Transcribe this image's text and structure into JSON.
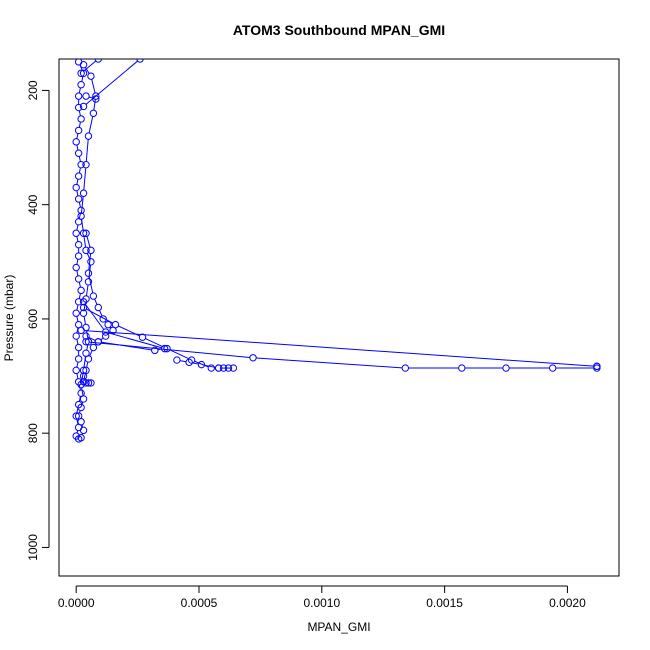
{
  "chart_data": {
    "type": "line",
    "title": "ATOM3 Southbound MPAN_GMI",
    "xlabel": "MPAN_GMI",
    "ylabel": "Pressure (mbar)",
    "xlim": [
      -7e-05,
      0.00221
    ],
    "ylim": [
      1050,
      145
    ],
    "y_reversed": true,
    "grid": false,
    "color": "#0000ff",
    "marker": "open-circle",
    "x_ticks": [
      {
        "value": 0.0,
        "label": "0.0000"
      },
      {
        "value": 0.0005,
        "label": "0.0005"
      },
      {
        "value": 0.001,
        "label": "0.0010"
      },
      {
        "value": 0.0015,
        "label": "0.0015"
      },
      {
        "value": 0.002,
        "label": "0.0020"
      }
    ],
    "y_ticks": [
      {
        "value": 200,
        "label": "200"
      },
      {
        "value": 400,
        "label": "400"
      },
      {
        "value": 600,
        "label": "600"
      },
      {
        "value": 800,
        "label": "800"
      },
      {
        "value": 1000,
        "label": "1000"
      }
    ],
    "series": [
      {
        "x": [
          1e-05,
          3e-05,
          2e-05,
          1e-05,
          1e-05,
          2e-05,
          1e-05,
          0.0,
          1e-05,
          2e-05,
          1e-05,
          0.0,
          1e-05,
          2e-05,
          1e-05,
          0.0,
          1e-05,
          1e-05,
          0.0,
          1e-05,
          2e-05,
          1e-05,
          0.0,
          1e-05,
          0.0,
          1e-05,
          1e-05,
          0.0,
          1e-05,
          2e-05,
          1e-05,
          0.0,
          1e-05,
          0.0,
          1e-05
        ],
        "y": [
          150,
          170,
          190,
          210,
          230,
          250,
          270,
          290,
          310,
          330,
          350,
          370,
          390,
          410,
          430,
          450,
          470,
          490,
          510,
          530,
          550,
          570,
          590,
          610,
          630,
          650,
          670,
          690,
          710,
          730,
          750,
          770,
          790,
          805,
          810
        ]
      },
      {
        "x": [
          3e-05,
          6e-05,
          8e-05,
          7e-05,
          5e-05,
          4e-05,
          3e-05,
          2e-05,
          3e-05,
          4e-05,
          6e-05,
          5e-05,
          4e-05,
          3e-05,
          4e-05,
          5e-05,
          4e-05,
          3e-05,
          2e-05,
          3e-05,
          2e-05,
          1e-05,
          2e-05,
          3e-05,
          2e-05
        ],
        "y": [
          155,
          175,
          210,
          240,
          280,
          330,
          380,
          420,
          450,
          480,
          500,
          535,
          565,
          590,
          615,
          640,
          660,
          690,
          715,
          740,
          755,
          770,
          780,
          795,
          808
        ]
      },
      {
        "x": [
          4e-05,
          6e-05,
          5e-05,
          7e-05,
          9e-05,
          0.00011,
          0.00013,
          0.00015,
          0.00012,
          9e-05,
          7e-05,
          5e-05,
          4e-05,
          3e-05
        ],
        "y": [
          450,
          480,
          520,
          560,
          580,
          600,
          610,
          620,
          630,
          640,
          650,
          670,
          690,
          710
        ]
      },
      {
        "x": [
          3e-05,
          0.00016,
          0.00027,
          0.00037,
          0.00047,
          0.00055,
          0.00058,
          0.0006,
          0.00062,
          0.00064,
          0.00058,
          0.00051,
          0.00046,
          0.00041
        ],
        "y": [
          580,
          610,
          632,
          652,
          672,
          686,
          686,
          686,
          686,
          686,
          686,
          680,
          676,
          672
        ]
      },
      {
        "x": [
          4e-05,
          0.00072,
          0.00134,
          0.00157,
          0.00175,
          0.00194,
          0.00212,
          0.00212
        ],
        "y": [
          640,
          668,
          686,
          686,
          686,
          686,
          686,
          683
        ]
      },
      {
        "x": [
          2e-05,
          0.00212
        ],
        "y": [
          620,
          683
        ]
      },
      {
        "x": [
          3e-05,
          0.00012,
          0.00036,
          0.00032,
          9e-05,
          4e-05
        ],
        "y": [
          570,
          623,
          652,
          655,
          640,
          630
        ]
      },
      {
        "x": [
          3e-05,
          5e-05,
          6e-05,
          4e-05
        ],
        "y": [
          700,
          712,
          712,
          712
        ]
      },
      {
        "x": [
          4e-05,
          8e-05
        ],
        "y": [
          210,
          215
        ]
      },
      {
        "x": [
          3e-05,
          0.00026
        ],
        "y": [
          228,
          145
        ]
      },
      {
        "x": [
          2e-05,
          9e-05
        ],
        "y": [
          170,
          145
        ]
      }
    ]
  }
}
